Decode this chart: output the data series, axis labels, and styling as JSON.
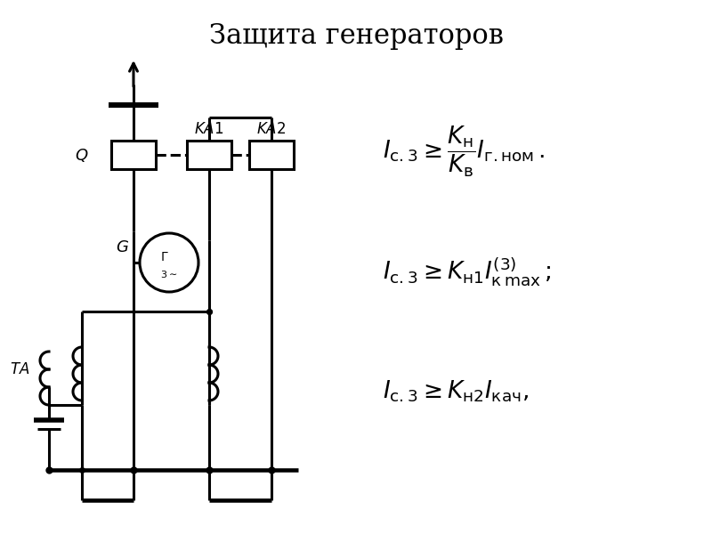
{
  "title": "Защита генераторов",
  "title_fontsize": 22,
  "bg_color": "#ffffff",
  "line_color": "#000000",
  "line_width": 2.2
}
